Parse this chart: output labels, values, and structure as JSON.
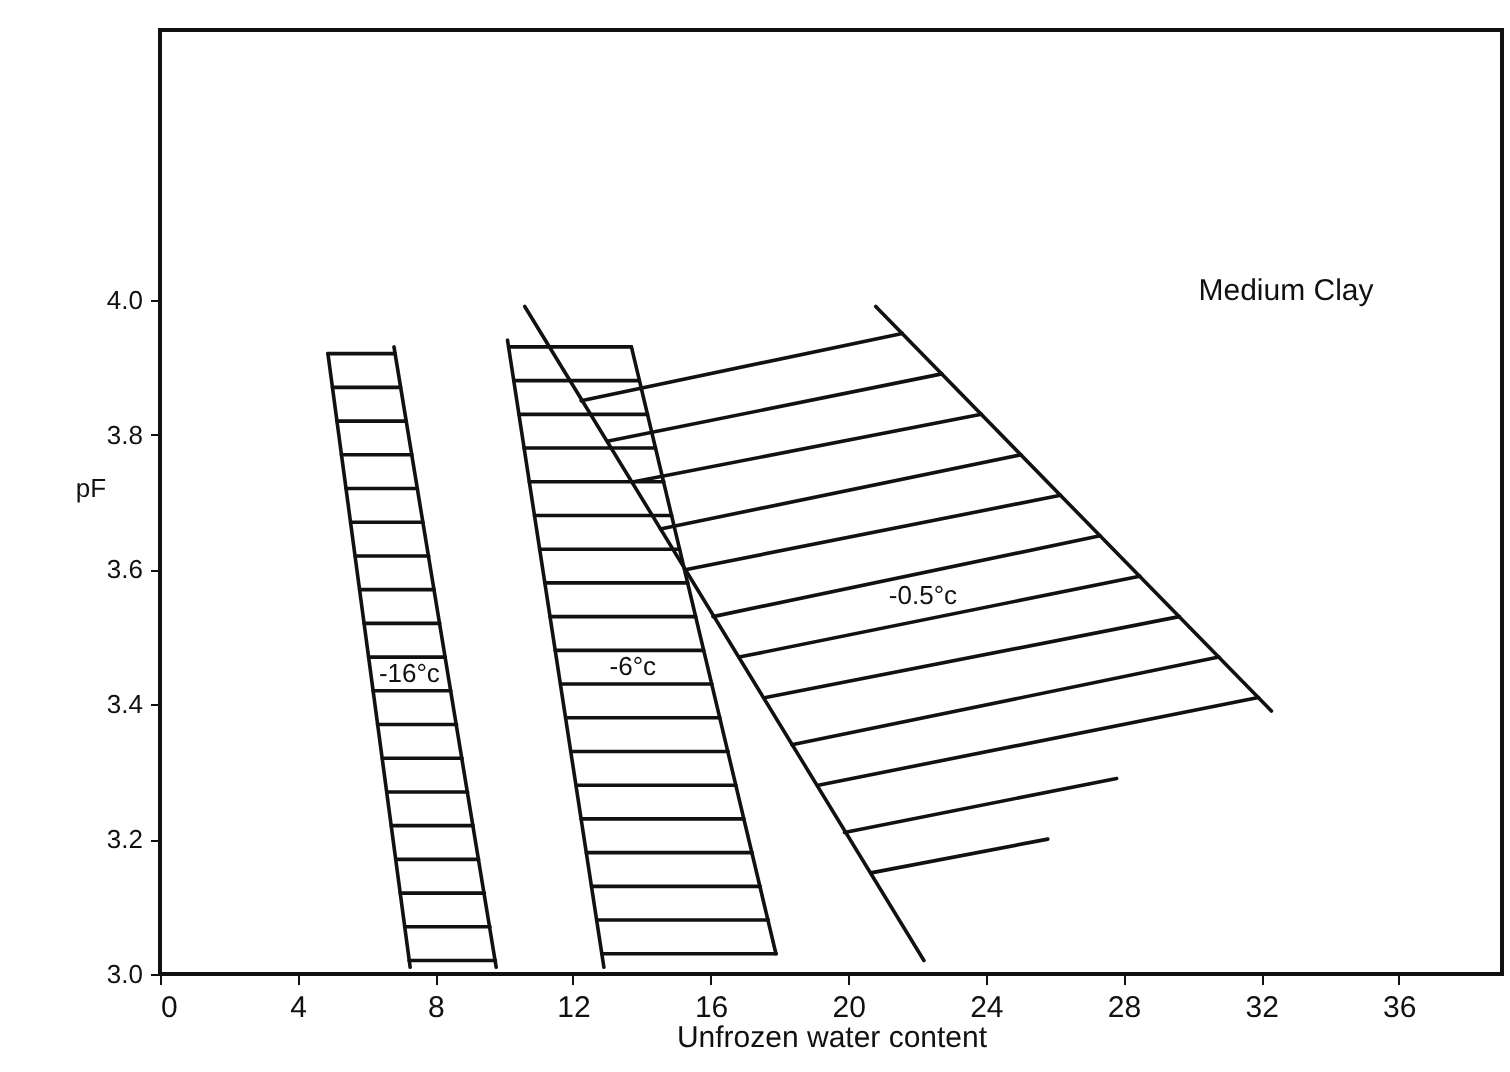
{
  "chart_data": {
    "type": "line",
    "xlabel": "Unfrozen water content",
    "ylabel": "pF",
    "xlim": [
      0,
      39
    ],
    "ylim": [
      3.0,
      4.4
    ],
    "xticks": [
      0,
      4,
      8,
      12,
      16,
      20,
      24,
      28,
      32,
      36
    ],
    "yticks": [
      {
        "value": 3.0,
        "label": "3.0"
      },
      3.2,
      3.4,
      3.6,
      3.8,
      {
        "value": 4.0,
        "label": "4.0"
      }
    ],
    "grid": false,
    "marker": "none",
    "line_style": "solid",
    "series": [
      {
        "color": "#111111",
        "x": [
          4.88,
          7.27
        ],
        "values": [
          3.92,
          3.01
        ]
      },
      {
        "color": "#111111",
        "x": [
          6.8,
          9.77
        ],
        "values": [
          3.93,
          3.01
        ]
      },
      {
        "color": "#111111",
        "x": [
          10.1,
          12.9
        ],
        "values": [
          3.94,
          3.01
        ]
      },
      {
        "color": "#111111",
        "x": [
          13.7,
          17.9
        ],
        "values": [
          3.93,
          3.03
        ]
      },
      {
        "color": "#111111",
        "x": [
          10.6,
          22.2
        ],
        "values": [
          3.99,
          3.02
        ]
      },
      {
        "color": "#111111",
        "x": [
          20.8,
          32.3
        ],
        "values": [
          3.99,
          3.39
        ]
      },
      {
        "name": "-16°c",
        "color": "#111111",
        "x": [
          4.88,
          6.83,
          null,
          5.01,
          6.99,
          null,
          5.14,
          7.16,
          null,
          5.27,
          7.32,
          null,
          5.41,
          7.48,
          null,
          5.54,
          7.64,
          null,
          5.67,
          7.81,
          null,
          5.8,
          7.97,
          null,
          5.93,
          8.13,
          null,
          6.06,
          8.29,
          null,
          6.19,
          8.45,
          null,
          6.32,
          8.62,
          null,
          6.46,
          8.78,
          null,
          6.59,
          8.94,
          null,
          6.72,
          9.1,
          null,
          6.85,
          9.26,
          null,
          6.98,
          9.43,
          null,
          7.11,
          9.59,
          null,
          7.24,
          9.75
        ],
        "values": [
          3.92,
          3.92,
          null,
          3.87,
          3.87,
          null,
          3.82,
          3.82,
          null,
          3.77,
          3.77,
          null,
          3.72,
          3.72,
          null,
          3.67,
          3.67,
          null,
          3.62,
          3.62,
          null,
          3.57,
          3.57,
          null,
          3.52,
          3.52,
          null,
          3.47,
          3.47,
          null,
          3.42,
          3.42,
          null,
          3.37,
          3.37,
          null,
          3.32,
          3.32,
          null,
          3.27,
          3.27,
          null,
          3.22,
          3.22,
          null,
          3.17,
          3.17,
          null,
          3.12,
          3.12,
          null,
          3.07,
          3.07,
          null,
          3.02,
          3.02
        ]
      },
      {
        "name": "-6°c",
        "color": "#111111",
        "x": [
          10.13,
          13.7,
          null,
          10.28,
          13.93,
          null,
          10.43,
          14.17,
          null,
          10.58,
          14.4,
          null,
          10.73,
          14.64,
          null,
          10.88,
          14.87,
          null,
          11.03,
          15.1,
          null,
          11.18,
          15.34,
          null,
          11.33,
          15.57,
          null,
          11.48,
          15.8,
          null,
          11.64,
          16.04,
          null,
          11.79,
          16.27,
          null,
          11.94,
          16.51,
          null,
          12.09,
          16.74,
          null,
          12.24,
          16.97,
          null,
          12.39,
          17.21,
          null,
          12.54,
          17.44,
          null,
          12.69,
          17.68,
          null,
          12.84,
          17.91
        ],
        "values": [
          3.93,
          3.93,
          null,
          3.88,
          3.88,
          null,
          3.83,
          3.83,
          null,
          3.78,
          3.78,
          null,
          3.73,
          3.73,
          null,
          3.68,
          3.68,
          null,
          3.63,
          3.63,
          null,
          3.58,
          3.58,
          null,
          3.53,
          3.53,
          null,
          3.48,
          3.48,
          null,
          3.43,
          3.43,
          null,
          3.38,
          3.38,
          null,
          3.33,
          3.33,
          null,
          3.28,
          3.28,
          null,
          3.23,
          3.23,
          null,
          3.18,
          3.18,
          null,
          3.13,
          3.13,
          null,
          3.08,
          3.08,
          null,
          3.03,
          3.03
        ]
      },
      {
        "name": "-0.5°c",
        "color": "#111111",
        "x": [
          12.24,
          21.57,
          null,
          13.0,
          22.72,
          null,
          13.77,
          23.87,
          null,
          14.54,
          25.02,
          null,
          15.3,
          26.17,
          null,
          16.07,
          27.32,
          null,
          16.83,
          28.47,
          null,
          17.6,
          29.62,
          null,
          18.36,
          30.77,
          null,
          19.13,
          31.92,
          null,
          19.89,
          27.8,
          null,
          20.66,
          25.8
        ],
        "values": [
          3.85,
          3.95,
          null,
          3.79,
          3.89,
          null,
          3.73,
          3.83,
          null,
          3.66,
          3.77,
          null,
          3.6,
          3.71,
          null,
          3.53,
          3.65,
          null,
          3.47,
          3.59,
          null,
          3.41,
          3.53,
          null,
          3.34,
          3.47,
          null,
          3.28,
          3.41,
          null,
          3.21,
          3.29,
          null,
          3.15,
          3.2
        ]
      }
    ],
    "annotations": [
      "Medium Clay"
    ]
  }
}
